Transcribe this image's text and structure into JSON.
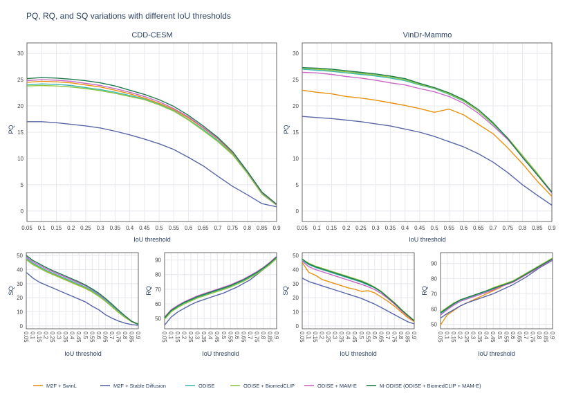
{
  "chart_data": {
    "title": "PQ, RQ, and SQ variations with different IoU thresholds",
    "x": [
      0.05,
      0.1,
      0.15,
      0.2,
      0.25,
      0.3,
      0.35,
      0.4,
      0.45,
      0.5,
      0.55,
      0.6,
      0.65,
      0.7,
      0.75,
      0.8,
      0.85,
      0.9
    ],
    "x_tick_labels": [
      "0.05",
      "0.1",
      "0.15",
      "0.2",
      "0.25",
      "0.3",
      "0.35",
      "0.4",
      "0.45",
      "0.5",
      "0.55",
      "0.6",
      "0.65",
      "0.7",
      "0.75",
      "0.8",
      "0.85",
      "0.9"
    ],
    "series_names": [
      "M2F + SwinL",
      "M2F + Stable Diffusion",
      "ODISE",
      "ODISE + BiomedCLIP",
      "ODISE + MAM-E",
      "M-ODISE (ODISE + BiomedCLIP + MAM-E)"
    ],
    "series_colors": [
      "#e8910d",
      "#5865a8",
      "#3fb8b0",
      "#8dc63f",
      "#c966c6",
      "#1e7a4c"
    ],
    "panels": [
      {
        "id": "cdd-pq",
        "type": "line",
        "title": "CDD-CESM",
        "xlabel": "IoU threshold",
        "ylabel": "PQ",
        "ylim": [
          -2,
          32
        ],
        "yticks": [
          0,
          5,
          10,
          15,
          20,
          25,
          30
        ],
        "series": [
          {
            "name": "M2F + SwinL",
            "values": [
              24.5,
              24.7,
              24.6,
              24.4,
              24.0,
              23.6,
              23.0,
              22.3,
              21.5,
              20.5,
              19.3,
              17.7,
              15.8,
              13.7,
              11.0,
              7.4,
              3.4,
              1.2
            ]
          },
          {
            "name": "M2F + Stable Diffusion",
            "values": [
              17.0,
              17.0,
              16.8,
              16.5,
              16.2,
              15.8,
              15.2,
              14.5,
              13.7,
              12.8,
              11.7,
              10.2,
              8.6,
              6.6,
              4.7,
              3.1,
              1.4,
              0.8
            ]
          },
          {
            "name": "ODISE",
            "values": [
              24.0,
              24.2,
              24.1,
              23.9,
              23.5,
              23.1,
              22.6,
              22.0,
              21.3,
              20.3,
              19.1,
              17.4,
              15.5,
              13.4,
              10.8,
              7.3,
              3.3,
              1.1
            ]
          },
          {
            "name": "ODISE + BiomedCLIP",
            "values": [
              23.8,
              23.9,
              23.8,
              23.6,
              23.3,
              22.9,
              22.4,
              21.8,
              21.2,
              20.2,
              19.0,
              17.3,
              15.3,
              13.2,
              10.7,
              7.2,
              3.2,
              1.1
            ]
          },
          {
            "name": "ODISE + MAM-E",
            "values": [
              24.8,
              25.0,
              24.9,
              24.7,
              24.3,
              23.9,
              23.3,
              22.6,
              21.8,
              20.8,
              19.5,
              17.9,
              15.9,
              13.8,
              11.2,
              7.5,
              3.5,
              1.2
            ]
          },
          {
            "name": "M-ODISE (ODISE + BiomedCLIP + MAM-E)",
            "values": [
              25.2,
              25.4,
              25.3,
              25.1,
              24.8,
              24.4,
              23.8,
              23.0,
              22.2,
              21.2,
              19.9,
              18.2,
              16.2,
              14.0,
              11.3,
              7.6,
              3.6,
              1.3
            ]
          }
        ]
      },
      {
        "id": "vin-pq",
        "type": "line",
        "title": "VinDr-Mammo",
        "xlabel": "IoU threshold",
        "ylabel": "PQ",
        "ylim": [
          -2,
          32
        ],
        "yticks": [
          0,
          5,
          10,
          15,
          20,
          25,
          30
        ],
        "series": [
          {
            "name": "M2F + SwinL",
            "values": [
              23.0,
              22.6,
              22.3,
              21.8,
              21.5,
              21.1,
              20.6,
              20.1,
              19.5,
              18.8,
              19.4,
              18.3,
              16.5,
              14.7,
              12.0,
              9.0,
              5.7,
              2.8
            ]
          },
          {
            "name": "M2F + Stable Diffusion",
            "values": [
              18.0,
              17.8,
              17.6,
              17.3,
              17.0,
              16.6,
              16.2,
              15.6,
              15.0,
              14.2,
              13.2,
              12.2,
              10.9,
              9.3,
              7.3,
              5.0,
              3.0,
              1.1
            ]
          },
          {
            "name": "ODISE",
            "values": [
              27.0,
              26.8,
              26.6,
              26.3,
              26.0,
              25.7,
              25.3,
              24.8,
              24.0,
              23.3,
              22.2,
              20.9,
              19.0,
              16.5,
              13.8,
              10.4,
              7.0,
              3.5
            ]
          },
          {
            "name": "ODISE + BiomedCLIP",
            "values": [
              27.2,
              27.0,
              26.8,
              26.5,
              26.2,
              25.9,
              25.5,
              25.0,
              24.1,
              23.4,
              22.3,
              21.0,
              19.0,
              16.6,
              13.9,
              10.6,
              7.2,
              3.6
            ]
          },
          {
            "name": "ODISE + MAM-E",
            "values": [
              26.4,
              26.3,
              26.0,
              25.6,
              25.3,
              24.9,
              24.4,
              24.0,
              23.3,
              22.7,
              21.8,
              20.5,
              18.6,
              16.2,
              13.6,
              10.3,
              6.9,
              3.4
            ]
          },
          {
            "name": "M-ODISE (ODISE + BiomedCLIP + MAM-E)",
            "values": [
              27.3,
              27.2,
              27.0,
              26.7,
              26.4,
              26.1,
              25.7,
              25.2,
              24.3,
              23.5,
              22.5,
              21.2,
              19.3,
              16.8,
              13.8,
              10.2,
              6.9,
              3.6
            ]
          }
        ]
      },
      {
        "id": "cdd-sq",
        "type": "line",
        "xlabel": "IoU threshold",
        "ylabel": "SQ",
        "ylim": [
          -2,
          52
        ],
        "yticks": [
          0,
          10,
          20,
          30,
          40,
          50
        ],
        "series": [
          {
            "name": "M2F + SwinL",
            "values": [
              47.5,
              44.0,
              41.5,
              39.0,
              37.0,
              35.0,
              33.0,
              31.0,
              29.0,
              27.0,
              24.5,
              21.5,
              18.0,
              14.0,
              10.0,
              6.0,
              3.0,
              1.0
            ]
          },
          {
            "name": "M2F + Stable Diffusion",
            "values": [
              38.0,
              34.0,
              31.0,
              29.0,
              27.0,
              25.0,
              23.0,
              21.0,
              19.0,
              17.0,
              14.0,
              11.5,
              8.0,
              5.5,
              3.5,
              2.0,
              1.0,
              0.5
            ]
          },
          {
            "name": "ODISE",
            "values": [
              48.0,
              44.5,
              42.0,
              39.5,
              37.5,
              35.5,
              33.5,
              31.5,
              29.5,
              27.5,
              25.0,
              22.0,
              18.5,
              14.5,
              10.5,
              6.5,
              3.0,
              1.0
            ]
          },
          {
            "name": "ODISE + BiomedCLIP",
            "values": [
              47.0,
              43.5,
              41.0,
              38.5,
              36.5,
              34.5,
              32.5,
              30.5,
              28.5,
              26.5,
              24.0,
              21.0,
              17.5,
              13.5,
              9.5,
              6.0,
              3.0,
              1.0
            ]
          },
          {
            "name": "ODISE + MAM-E",
            "values": [
              49.0,
              45.5,
              43.0,
              40.5,
              38.5,
              36.5,
              34.5,
              32.5,
              30.5,
              28.5,
              25.8,
              22.8,
              19.2,
              15.2,
              11.0,
              7.0,
              3.2,
              1.2
            ]
          },
          {
            "name": "M-ODISE (ODISE + BiomedCLIP + MAM-E)",
            "values": [
              50.0,
              46.5,
              44.0,
              41.5,
              39.3,
              37.3,
              35.3,
              33.3,
              31.3,
              29.0,
              26.3,
              23.3,
              19.6,
              15.5,
              11.2,
              7.1,
              3.3,
              1.3
            ]
          }
        ]
      },
      {
        "id": "cdd-rq",
        "type": "line",
        "xlabel": "IoU threshold",
        "ylabel": "RQ",
        "ylim": [
          43,
          95
        ],
        "yticks": [
          50,
          60,
          70,
          80,
          90
        ],
        "series": [
          {
            "name": "M2F + SwinL",
            "values": [
              50.5,
              55.5,
              58.5,
              61.0,
              63.0,
              65.0,
              66.5,
              68.0,
              69.5,
              71.0,
              72.5,
              74.5,
              76.5,
              79.0,
              81.5,
              84.5,
              88.0,
              92.0
            ]
          },
          {
            "name": "M2F + Stable Diffusion",
            "values": [
              45.5,
              51.0,
              54.5,
              57.0,
              59.5,
              61.5,
              63.0,
              64.5,
              66.0,
              67.5,
              69.5,
              71.5,
              74.0,
              76.5,
              80.0,
              83.5,
              87.0,
              91.0
            ]
          },
          {
            "name": "ODISE",
            "values": [
              50.0,
              55.0,
              58.0,
              60.5,
              62.5,
              64.5,
              66.0,
              67.5,
              69.0,
              70.5,
              72.0,
              74.0,
              76.0,
              78.5,
              81.0,
              84.0,
              87.5,
              91.5
            ]
          },
          {
            "name": "ODISE + BiomedCLIP",
            "values": [
              49.5,
              54.5,
              57.5,
              60.0,
              62.0,
              64.0,
              65.5,
              67.0,
              68.5,
              70.0,
              71.5,
              73.5,
              75.5,
              78.0,
              80.5,
              83.5,
              87.0,
              91.0
            ]
          },
          {
            "name": "ODISE + MAM-E",
            "values": [
              51.0,
              56.0,
              59.0,
              61.5,
              63.5,
              65.5,
              67.0,
              68.5,
              70.0,
              71.5,
              73.0,
              75.0,
              77.0,
              79.5,
              82.0,
              85.0,
              88.5,
              92.5
            ]
          },
          {
            "name": "M-ODISE (ODISE + BiomedCLIP + MAM-E)",
            "values": [
              50.5,
              55.5,
              58.5,
              61.0,
              63.0,
              65.0,
              66.5,
              68.0,
              69.5,
              71.0,
              72.5,
              74.5,
              76.5,
              79.0,
              81.5,
              84.5,
              88.0,
              92.0
            ]
          }
        ]
      },
      {
        "id": "vin-sq",
        "type": "line",
        "xlabel": "IoU threshold",
        "ylabel": "SQ",
        "ylim": [
          -2,
          52
        ],
        "yticks": [
          0,
          10,
          20,
          30,
          40,
          50
        ],
        "series": [
          {
            "name": "M2F + SwinL",
            "values": [
              45.0,
              38.0,
              36.0,
              33.0,
              31.5,
              30.0,
              28.5,
              27.0,
              26.0,
              24.5,
              25.0,
              23.5,
              20.5,
              17.5,
              14.0,
              10.0,
              6.0,
              3.0
            ]
          },
          {
            "name": "M2F + Stable Diffusion",
            "values": [
              34.0,
              31.5,
              30.0,
              28.5,
              27.0,
              25.5,
              24.0,
              22.5,
              21.0,
              19.5,
              17.5,
              15.5,
              13.0,
              10.5,
              8.0,
              5.5,
              3.0,
              1.5
            ]
          },
          {
            "name": "ODISE",
            "values": [
              46.5,
              43.5,
              41.5,
              40.0,
              38.5,
              37.0,
              35.5,
              34.0,
              32.5,
              31.0,
              29.0,
              27.0,
              24.0,
              20.0,
              16.0,
              11.5,
              7.5,
              3.5
            ]
          },
          {
            "name": "ODISE + BiomedCLIP",
            "values": [
              47.0,
              44.5,
              42.5,
              41.0,
              39.5,
              38.0,
              36.5,
              35.0,
              33.5,
              32.0,
              30.0,
              27.5,
              24.5,
              20.5,
              16.5,
              12.0,
              7.8,
              3.8
            ]
          },
          {
            "name": "ODISE + MAM-E",
            "values": [
              46.0,
              42.0,
              40.0,
              38.5,
              37.0,
              35.5,
              34.0,
              32.5,
              31.0,
              29.5,
              27.8,
              25.8,
              23.0,
              19.5,
              15.5,
              11.0,
              7.0,
              3.5
            ]
          },
          {
            "name": "M-ODISE (ODISE + BiomedCLIP + MAM-E)",
            "values": [
              47.5,
              44.0,
              42.0,
              40.5,
              39.0,
              37.5,
              36.0,
              34.5,
              33.0,
              31.5,
              29.5,
              27.2,
              24.2,
              20.2,
              16.2,
              11.7,
              7.5,
              3.7
            ]
          }
        ]
      },
      {
        "id": "vin-rq",
        "type": "line",
        "xlabel": "IoU threshold",
        "ylabel": "RQ",
        "ylim": [
          47,
          97
        ],
        "yticks": [
          50,
          60,
          70,
          80,
          90
        ],
        "series": [
          {
            "name": "M2F + SwinL",
            "values": [
              49.5,
              56.0,
              59.0,
              62.0,
              64.0,
              66.0,
              68.0,
              70.0,
              72.0,
              74.0,
              76.5,
              78.0,
              80.0,
              82.5,
              85.0,
              87.5,
              90.5,
              93.0
            ]
          },
          {
            "name": "M2F + Stable Diffusion",
            "values": [
              54.0,
              57.0,
              59.5,
              62.0,
              64.0,
              65.5,
              67.0,
              68.5,
              70.0,
              72.0,
              74.0,
              76.0,
              78.5,
              81.0,
              84.0,
              87.0,
              89.5,
              92.0
            ]
          },
          {
            "name": "ODISE",
            "values": [
              57.0,
              60.0,
              63.0,
              65.5,
              67.0,
              68.5,
              70.0,
              71.5,
              73.0,
              75.0,
              76.5,
              78.0,
              80.5,
              83.0,
              85.5,
              88.0,
              90.5,
              93.0
            ]
          },
          {
            "name": "ODISE + BiomedCLIP",
            "values": [
              58.0,
              61.0,
              64.0,
              66.0,
              67.5,
              69.0,
              70.5,
              72.0,
              74.0,
              75.5,
              77.0,
              78.5,
              81.0,
              83.5,
              86.0,
              88.5,
              91.0,
              93.5
            ]
          },
          {
            "name": "ODISE + MAM-E",
            "values": [
              56.0,
              59.5,
              62.5,
              65.0,
              66.5,
              68.0,
              69.5,
              71.0,
              72.5,
              74.5,
              76.0,
              77.5,
              80.0,
              82.5,
              85.0,
              87.5,
              90.0,
              92.5
            ]
          },
          {
            "name": "M-ODISE (ODISE + BiomedCLIP + MAM-E)",
            "values": [
              57.5,
              60.5,
              63.5,
              66.0,
              67.5,
              69.0,
              70.5,
              72.0,
              73.5,
              75.0,
              76.5,
              78.0,
              80.5,
              83.0,
              85.5,
              88.0,
              90.5,
              93.0
            ]
          }
        ]
      }
    ]
  }
}
